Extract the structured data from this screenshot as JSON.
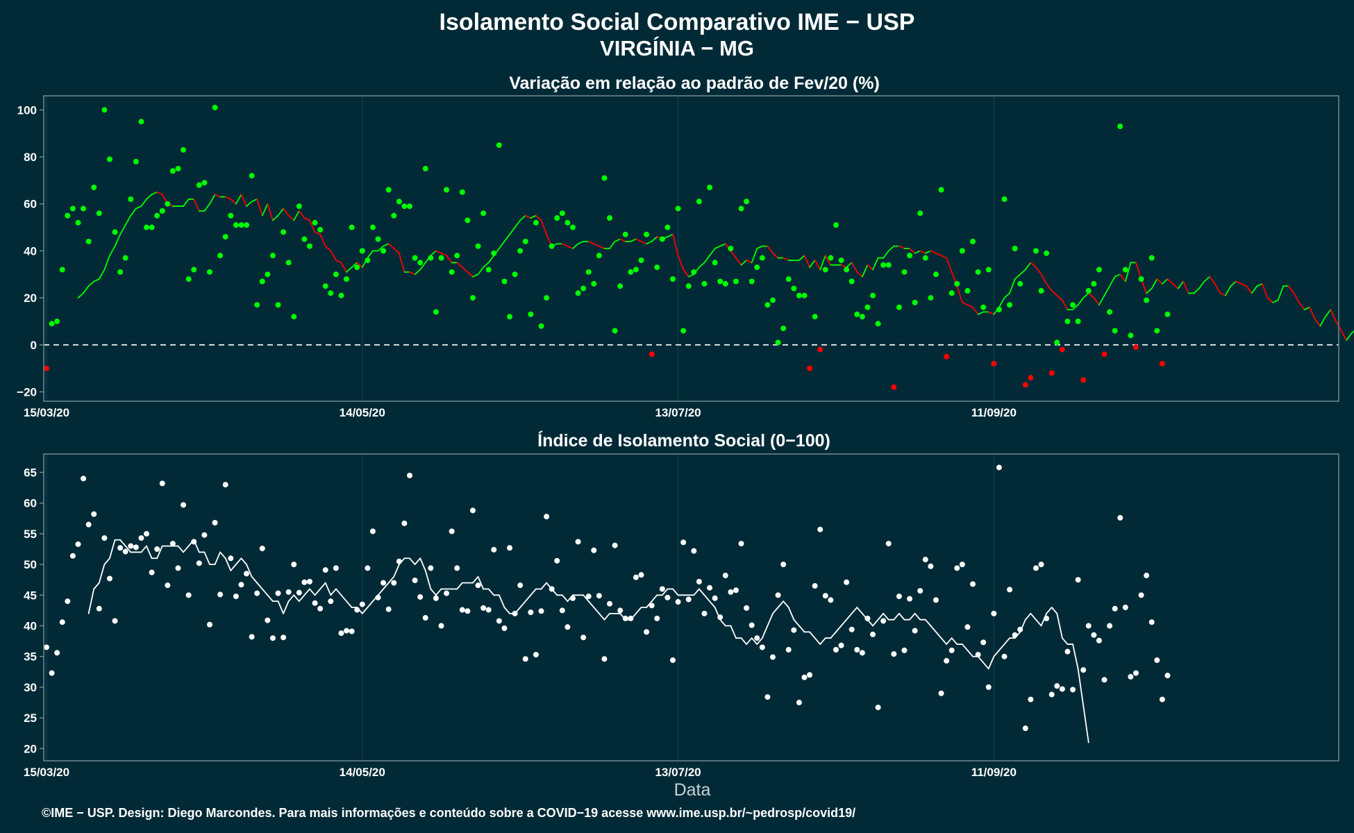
{
  "title_line1": "Isolamento Social Comparativo IME − USP",
  "title_line2": "VIRGÍNIA − MG",
  "xlabel": "Data",
  "footer": "©IME − USP. Design: Diego Marcondes. Para mais informações e conteúdo sobre a COVID−19 acesse www.ime.usp.br/~pedrosp/covid19/",
  "colors": {
    "background": "#022a36",
    "positive": "#00ff00",
    "negative": "#ff0000",
    "index": "#ffffff",
    "frame": "#6f8a92"
  },
  "chart_data": [
    {
      "type": "scatter",
      "title": "Variação em relação ao padrão de Fev/20 (%)",
      "x_start": "15/03/20",
      "x_ticks": [
        "15/03/20",
        "14/05/20",
        "13/07/20",
        "11/09/20"
      ],
      "x_tick_days": [
        0,
        60,
        120,
        180
      ],
      "ylim": [
        -24,
        106
      ],
      "y_ticks": [
        100,
        80,
        60,
        40,
        20,
        0,
        -20
      ],
      "reference_line": 0,
      "values": [
        -10,
        9,
        10,
        32,
        55,
        58,
        52,
        58,
        44,
        67,
        56,
        100,
        79,
        48,
        31,
        37,
        62,
        78,
        95,
        50,
        50,
        55,
        57,
        60,
        74,
        75,
        83,
        28,
        32,
        68,
        69,
        31,
        101,
        38,
        46,
        55,
        51,
        51,
        51,
        72,
        17,
        27,
        30,
        38,
        17,
        48,
        35,
        12,
        59,
        45,
        42,
        52,
        49,
        25,
        22,
        30,
        21,
        28,
        50,
        33,
        40,
        36,
        50,
        45,
        40,
        66,
        55,
        61,
        59,
        59,
        37,
        35,
        75,
        37,
        14,
        37,
        66,
        31,
        38,
        65,
        53,
        20,
        42,
        56,
        32,
        39,
        85,
        27,
        12,
        30,
        40,
        44,
        13,
        52,
        8,
        20,
        42,
        54,
        56,
        52,
        50,
        22,
        24,
        31,
        26,
        38,
        71,
        54,
        6,
        25,
        47,
        31,
        32,
        36,
        47,
        -4,
        33,
        45,
        50,
        28,
        58,
        6,
        25,
        31,
        61,
        26,
        67,
        35,
        27,
        26,
        41,
        27,
        58,
        61,
        27,
        33,
        37,
        17,
        19,
        1,
        7,
        28,
        24,
        21,
        21,
        -10,
        12,
        -2,
        32,
        37,
        51,
        36,
        32,
        27,
        13,
        12,
        16,
        21,
        9,
        34,
        34,
        -18,
        16,
        31,
        38,
        18,
        56,
        37,
        20,
        30,
        66,
        -5,
        22,
        26,
        40,
        23,
        44,
        31,
        16,
        32,
        -8,
        15,
        62,
        17,
        41,
        26,
        -17,
        -14,
        40,
        23,
        39,
        -12,
        1,
        -2,
        10,
        17,
        10,
        -15,
        23,
        26,
        32,
        -4,
        14,
        6,
        93,
        32,
        4,
        -1,
        28,
        19,
        37,
        6,
        -8,
        13
      ],
      "moving_average": [
        null,
        null,
        null,
        null,
        null,
        null,
        20,
        22,
        25,
        27,
        28,
        32,
        38,
        42,
        47,
        51,
        55,
        58,
        59,
        62,
        64,
        65,
        64,
        60,
        59,
        59,
        59,
        62,
        62,
        57,
        57,
        60,
        64,
        63,
        63,
        62,
        60,
        64,
        59,
        61,
        62,
        55,
        60,
        53,
        55,
        58,
        55,
        53,
        57,
        54,
        53,
        48,
        47,
        42,
        40,
        36,
        35,
        31,
        33,
        35,
        33,
        37,
        40,
        40,
        42,
        43,
        41,
        39,
        31,
        31,
        30,
        32,
        35,
        38,
        40,
        39,
        38,
        35,
        35,
        33,
        31,
        29,
        30,
        33,
        35,
        38,
        41,
        44,
        47,
        50,
        53,
        55,
        54,
        55,
        53,
        47,
        42,
        43,
        43,
        42,
        41,
        43,
        44,
        44,
        43,
        42,
        41,
        41,
        44,
        45,
        44,
        44,
        45,
        44,
        43,
        44,
        46,
        45,
        46,
        47,
        38,
        32,
        29,
        30,
        33,
        35,
        38,
        41,
        42,
        43,
        40,
        37,
        34,
        36,
        35,
        41,
        42,
        42,
        39,
        37,
        37,
        36,
        36,
        36,
        38,
        33,
        36,
        32,
        38,
        34,
        34,
        34,
        33,
        35,
        31,
        29,
        34,
        32,
        37,
        37,
        40,
        42,
        42,
        41,
        41,
        39,
        40,
        39,
        40,
        39,
        38,
        37,
        31,
        25,
        18,
        17,
        16,
        13,
        14,
        14,
        13,
        16,
        20,
        22,
        28,
        30,
        32,
        35,
        33,
        30,
        26,
        23,
        21,
        19,
        15,
        15,
        17,
        20,
        22,
        20,
        17,
        21,
        25,
        29,
        30,
        27,
        35,
        35,
        28,
        22,
        24,
        28,
        26,
        28,
        26,
        24,
        27,
        22,
        22,
        24,
        27,
        29,
        26,
        22,
        21,
        25,
        27,
        26,
        25,
        22,
        25,
        26,
        20,
        18,
        19,
        25,
        25,
        22,
        18,
        15,
        16,
        11,
        8,
        12,
        15,
        10,
        6,
        2,
        5,
        7,
        10,
        12,
        16,
        17,
        19,
        18,
        22,
        27,
        28,
        24,
        20,
        23,
        25,
        25,
        30,
        20,
        12,
        13
      ]
    },
    {
      "type": "scatter",
      "title": "Índice de Isolamento Social (0−100)",
      "x_start": "15/03/20",
      "x_ticks": [
        "15/03/20",
        "14/05/20",
        "13/07/20",
        "11/09/20"
      ],
      "x_tick_days": [
        0,
        60,
        120,
        180
      ],
      "ylim": [
        18,
        68
      ],
      "y_ticks": [
        65,
        60,
        55,
        50,
        45,
        40,
        35,
        30,
        25,
        20
      ],
      "values": [
        36.5,
        32.3,
        35.6,
        40.6,
        44,
        51.4,
        53.3,
        64,
        56.5,
        58.2,
        42.8,
        54.3,
        47.7,
        40.8,
        52.7,
        52.1,
        53,
        52.8,
        54.3,
        55,
        48.7,
        52.5,
        63.2,
        46.6,
        53.4,
        49.4,
        59.7,
        45,
        53.7,
        50.2,
        54.8,
        40.2,
        56.8,
        45.1,
        63,
        51,
        44.8,
        46.7,
        48.5,
        38.2,
        45.3,
        52.6,
        40.9,
        38,
        45.3,
        38.1,
        45.5,
        50,
        45.4,
        47.1,
        47.2,
        43.7,
        42.8,
        49.1,
        44,
        49.4,
        38.8,
        39.2,
        39.1,
        42.6,
        43.5,
        49.4,
        55.4,
        44.6,
        47,
        42.7,
        47,
        50.5,
        56.7,
        64.5,
        47.4,
        44.7,
        41.3,
        49.4,
        44.5,
        40,
        45.3,
        55.4,
        49.4,
        42.6,
        42.4,
        58.8,
        46.6,
        42.9,
        42.6,
        52.4,
        40.8,
        39.6,
        52.7,
        42,
        46.6,
        34.6,
        42.2,
        35.3,
        42.4,
        57.8,
        46,
        50.6,
        42.5,
        39.8,
        44.5,
        53.7,
        38.1,
        44.8,
        52.3,
        44.9,
        34.6,
        43.6,
        53.1,
        42.5,
        41.2,
        41.2,
        47.9,
        48.3,
        39,
        43.3,
        41.2,
        46,
        44.6,
        34.4,
        43.9,
        53.6,
        44.3,
        52.2,
        47.2,
        42,
        46.2,
        44.5,
        41.4,
        48.2,
        45.5,
        45.8,
        53.4,
        42.9,
        40.1,
        38,
        36.5,
        28.4,
        34.9,
        45,
        50,
        36.1,
        39.3,
        27.5,
        31.6,
        32,
        46.5,
        55.7,
        44.9,
        44.2,
        36.1,
        36.8,
        47.1,
        39.4,
        36.1,
        35.6,
        41.2,
        38.6,
        26.7,
        40.8,
        53.4,
        35.4,
        44.8,
        36,
        44.4,
        39.2,
        45.7,
        50.8,
        49.7,
        44.2,
        29,
        34.3,
        36,
        49.4,
        50,
        39.8,
        46.8,
        35.3,
        37.3,
        30,
        42,
        65.8,
        35,
        45.9,
        38.5,
        39.4,
        23.3,
        28,
        49.4,
        50,
        41.2,
        28.8,
        30.2,
        29.7,
        35.8,
        29.6,
        47.5,
        32.8,
        40,
        38.5,
        37.6,
        31.2,
        40,
        42.8,
        57.6,
        43,
        31.7,
        32.3,
        45,
        48.2,
        40.6,
        34.4,
        28,
        31.9
      ],
      "moving_average": [
        null,
        null,
        null,
        null,
        null,
        null,
        null,
        null,
        42,
        46,
        47,
        50,
        51,
        54,
        54,
        53,
        52,
        52,
        52,
        53,
        51,
        51,
        53,
        53,
        53,
        53,
        52,
        53,
        54,
        52,
        52,
        50,
        50,
        52,
        51,
        49,
        50,
        51,
        50,
        48,
        47,
        46,
        45,
        44,
        44,
        42,
        44,
        45,
        44,
        45,
        46,
        45,
        46,
        47,
        45,
        46,
        45,
        44,
        43,
        43,
        42,
        43,
        44,
        45,
        46,
        47,
        48,
        50,
        51,
        51,
        50,
        51,
        49,
        46,
        45,
        46,
        46,
        46,
        46,
        47,
        47,
        47,
        48,
        46,
        46,
        45,
        45,
        43,
        42,
        42,
        43,
        44,
        45,
        46,
        46,
        47,
        46,
        45,
        45,
        44,
        45,
        45,
        45,
        44,
        43,
        42,
        41,
        42,
        42,
        42,
        41,
        41,
        42,
        43,
        43,
        44,
        45,
        45,
        46,
        46,
        45,
        45,
        45,
        45,
        46,
        45,
        44,
        43,
        41,
        40,
        40,
        38,
        38,
        37,
        38,
        37,
        38,
        40,
        42,
        43,
        44,
        43,
        41,
        40,
        39,
        39,
        38,
        37,
        38,
        38,
        39,
        40,
        41,
        42,
        43,
        42,
        41,
        40,
        41,
        42,
        41,
        41,
        42,
        41,
        41,
        42,
        41,
        41,
        40,
        39,
        38,
        37,
        38,
        37,
        37,
        36,
        35,
        35,
        34,
        33,
        35,
        36,
        37,
        38,
        38,
        39,
        41,
        42,
        41,
        40,
        42,
        43,
        42,
        38,
        37,
        37,
        33,
        27,
        21
      ]
    }
  ]
}
